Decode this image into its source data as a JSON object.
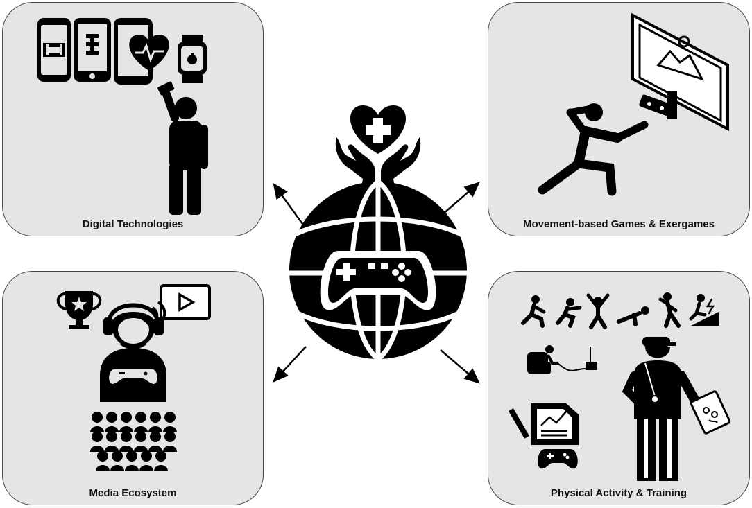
{
  "panels": {
    "top_left": {
      "label": "Digital Technologies"
    },
    "top_right": {
      "label": "Movement-based Games & Exergames"
    },
    "bottom_left": {
      "label": "Media Ecosystem"
    },
    "bottom_right": {
      "label": "Physical Activity & Training"
    }
  },
  "colors": {
    "panel_fill": "#e5e5e5",
    "panel_border": "#444444",
    "ink": "#000000"
  }
}
